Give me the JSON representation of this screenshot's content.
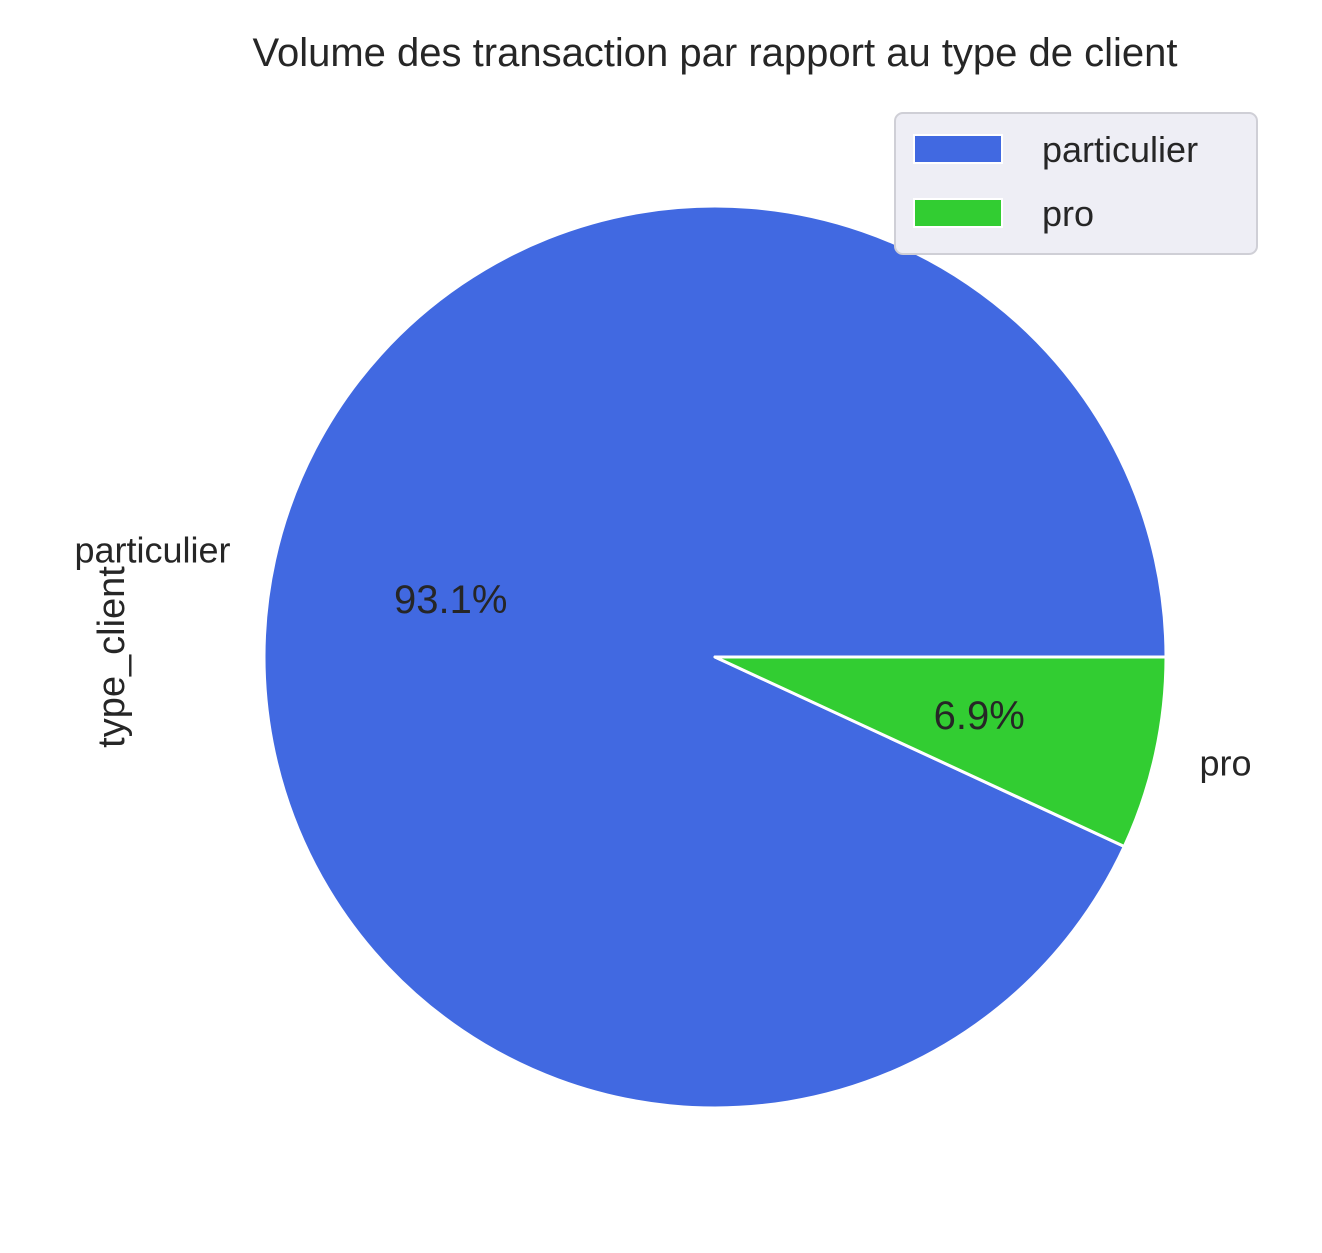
{
  "chart_data": {
    "type": "pie",
    "title": "Volume des transaction par rapport au type de client",
    "ylabel": "type_client",
    "categories": [
      "particulier",
      "pro"
    ],
    "values": [
      93.1,
      6.9
    ],
    "percent_labels": [
      "93.1%",
      "6.9%"
    ],
    "colors": [
      "#4169E1",
      "#32CD32"
    ],
    "edge_color": "#ffffff",
    "legend": {
      "placement": "top-right",
      "entries": [
        "particulier",
        "pro"
      ]
    }
  }
}
